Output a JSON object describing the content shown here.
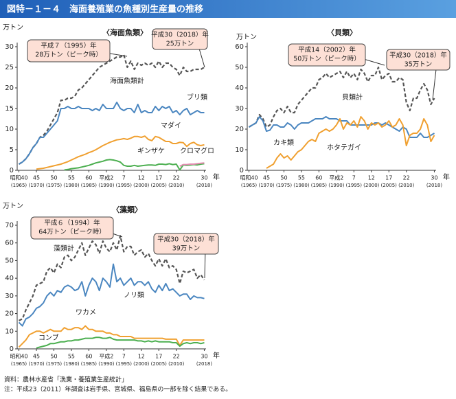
{
  "title": "図特－１－４　海面養殖業の魚種別生産量の推移",
  "notes": [
    "資料：農林水産省「漁業・養殖業生産統計」",
    "注：平成23（2011）年調査は岩手県、宮城県、福島県の一部を除く結果である。"
  ],
  "chart_data": [
    {
      "type": "line",
      "subtitle": "〈海面魚類〉",
      "y_unit": "万トン",
      "x_unit": "年",
      "x": [
        1965,
        1966,
        1967,
        1968,
        1969,
        1970,
        1971,
        1972,
        1973,
        1974,
        1975,
        1976,
        1977,
        1978,
        1979,
        1980,
        1981,
        1982,
        1983,
        1984,
        1985,
        1986,
        1987,
        1988,
        1989,
        1990,
        1991,
        1992,
        1993,
        1994,
        1995,
        1996,
        1997,
        1998,
        1999,
        2000,
        2001,
        2002,
        2003,
        2004,
        2005,
        2006,
        2007,
        2008,
        2009,
        2010,
        2011,
        2012,
        2013,
        2014,
        2015,
        2016,
        2017,
        2018
      ],
      "xlim": [
        1964.5,
        2018.5
      ],
      "xticks": [
        {
          "value": 1965,
          "label": "昭和40",
          "year": "(1965)"
        },
        {
          "value": 1970,
          "label": "45",
          "year": "(1970)"
        },
        {
          "value": 1975,
          "label": "50",
          "year": "(1975)"
        },
        {
          "value": 1980,
          "label": "55",
          "year": "(1980)"
        },
        {
          "value": 1985,
          "label": "60",
          "year": "(1985)"
        },
        {
          "value": 1990,
          "label": "平成2",
          "year": "(1990)"
        },
        {
          "value": 1995,
          "label": "7",
          "year": "(1995)"
        },
        {
          "value": 2000,
          "label": "12",
          "year": "(2000)"
        },
        {
          "value": 2005,
          "label": "17",
          "year": "(2005)"
        },
        {
          "value": 2010,
          "label": "22",
          "year": "(2010)"
        },
        {
          "value": 2018,
          "label": "30",
          "year": "(2018)"
        }
      ],
      "ylim": [
        0,
        30
      ],
      "yticks": [
        0,
        5,
        10,
        15,
        20,
        25,
        30
      ],
      "series": [
        {
          "name": "海面魚類計",
          "color": "#555555",
          "dashed": true,
          "values": [
            1.5,
            2,
            2.8,
            4,
            5.5,
            6.5,
            8,
            8.5,
            9.5,
            11,
            12.5,
            14,
            17,
            17,
            17.5,
            17.5,
            18,
            19.5,
            20,
            21,
            22,
            23,
            24,
            25,
            25.5,
            26,
            26.5,
            27,
            27.5,
            27.5,
            28,
            25,
            26.5,
            24.5,
            26,
            25.5,
            26,
            25.5,
            26,
            25,
            26.5,
            25,
            26,
            26,
            25,
            24.5,
            23,
            25,
            24,
            24,
            24.5,
            24.5,
            24.5,
            25
          ]
        },
        {
          "name": "ブリ類",
          "color": "#4a86c0",
          "values": [
            1.5,
            2,
            2.8,
            4,
            5.5,
            6.5,
            8,
            8,
            9,
            10,
            11,
            12,
            15,
            15,
            15.5,
            15,
            15,
            15.5,
            15,
            15,
            15,
            14.5,
            15,
            14.5,
            16,
            15,
            15,
            15,
            16.5,
            15,
            14.5,
            15,
            15,
            14,
            16,
            14,
            14.5,
            14,
            14,
            15.5,
            14.5,
            15.5,
            15,
            15.5,
            14,
            14.5,
            13.5,
            14.5,
            15,
            13.5,
            14,
            14.5,
            14,
            14
          ]
        },
        {
          "name": "マダイ",
          "color": "#f0a030",
          "values": [
            null,
            null,
            null,
            null,
            null,
            0.3,
            0.4,
            0.5,
            0.7,
            0.9,
            1.1,
            1.3,
            1.5,
            1.8,
            2.1,
            2.5,
            2.9,
            3.3,
            3.6,
            3.9,
            4.3,
            4.6,
            5,
            5.5,
            6,
            6.4,
            6.8,
            7.1,
            7.4,
            7.5,
            7.7,
            7.5,
            7.8,
            8.2,
            8.2,
            8,
            8.3,
            7.5,
            7.2,
            8.2,
            8,
            7.5,
            7,
            7,
            6.5,
            6.5,
            6.8,
            6.7,
            5.8,
            6.5,
            6.8,
            6.2,
            6,
            6.2
          ]
        },
        {
          "name": "ギンザケ",
          "color": "#4caf50",
          "values": [
            null,
            null,
            null,
            null,
            null,
            null,
            null,
            null,
            null,
            null,
            null,
            null,
            null,
            0.1,
            0.2,
            0.4,
            0.5,
            0.6,
            0.8,
            1,
            1.2,
            1.5,
            1.8,
            2,
            2.2,
            2.5,
            2.6,
            2.5,
            2.3,
            2,
            1.2,
            1,
            1,
            1.2,
            1,
            1.1,
            1.2,
            1.3,
            1.3,
            1.2,
            1.5,
            1.5,
            1.4,
            1.6,
            1.4,
            1.5,
            0.1,
            1.3,
            1.2,
            1.3,
            1.4,
            1.3,
            1.5,
            1.6
          ]
        },
        {
          "name": "クロマグロ",
          "color": "#e28cb0",
          "values": [
            null,
            null,
            null,
            null,
            null,
            null,
            null,
            null,
            null,
            null,
            null,
            null,
            null,
            null,
            null,
            null,
            null,
            null,
            null,
            null,
            null,
            null,
            null,
            null,
            null,
            null,
            null,
            null,
            null,
            null,
            null,
            null,
            null,
            null,
            null,
            null,
            null,
            null,
            null,
            null,
            null,
            null,
            null,
            null,
            null,
            null,
            1.0,
            1.4,
            1.4,
            1.5,
            1.5,
            1.6,
            1.7,
            1.8
          ]
        }
      ],
      "annotations": [
        {
          "lines": [
            "平成７（1995）年",
            "28万トン（ピーク時）"
          ]
        },
        {
          "lines": [
            "平成30（2018）年",
            "25万トン"
          ]
        }
      ]
    },
    {
      "type": "line",
      "subtitle": "〈貝類〉",
      "y_unit": "万トン",
      "x_unit": "年",
      "x": [
        1965,
        1966,
        1967,
        1968,
        1969,
        1970,
        1971,
        1972,
        1973,
        1974,
        1975,
        1976,
        1977,
        1978,
        1979,
        1980,
        1981,
        1982,
        1983,
        1984,
        1985,
        1986,
        1987,
        1988,
        1989,
        1990,
        1991,
        1992,
        1993,
        1994,
        1995,
        1996,
        1997,
        1998,
        1999,
        2000,
        2001,
        2002,
        2003,
        2004,
        2005,
        2006,
        2007,
        2008,
        2009,
        2010,
        2011,
        2012,
        2013,
        2014,
        2015,
        2016,
        2017,
        2018
      ],
      "xlim": [
        1964.5,
        2018.5
      ],
      "xticks": [
        {
          "value": 1965,
          "label": "昭和40",
          "year": "(1965)"
        },
        {
          "value": 1970,
          "label": "45",
          "year": "(1970)"
        },
        {
          "value": 1975,
          "label": "50",
          "year": "(1975)"
        },
        {
          "value": 1980,
          "label": "55",
          "year": "(1980)"
        },
        {
          "value": 1985,
          "label": "60",
          "year": "(1985)"
        },
        {
          "value": 1990,
          "label": "平成2",
          "year": "(1990)"
        },
        {
          "value": 1995,
          "label": "7",
          "year": "(1995)"
        },
        {
          "value": 2000,
          "label": "12",
          "year": "(2000)"
        },
        {
          "value": 2005,
          "label": "17",
          "year": "(2005)"
        },
        {
          "value": 2010,
          "label": "22",
          "year": "(2010)"
        },
        {
          "value": 2018,
          "label": "30",
          "year": "(2018)"
        }
      ],
      "ylim": [
        0,
        60
      ],
      "yticks": [
        0,
        10,
        20,
        30,
        40,
        50,
        60
      ],
      "series": [
        {
          "name": "貝類計",
          "color": "#555555",
          "dashed": true,
          "values": [
            21,
            22,
            23,
            27,
            25,
            21,
            22,
            26,
            29,
            30,
            28,
            31,
            28,
            28,
            32,
            34,
            36,
            38,
            40,
            40,
            44,
            45,
            47,
            45,
            46,
            47,
            48,
            45,
            48,
            45,
            47,
            44,
            49,
            47,
            43,
            46,
            46,
            50,
            44,
            46,
            47,
            43,
            43,
            45,
            44,
            33,
            29,
            35,
            35,
            39,
            42,
            39,
            32,
            35
          ]
        },
        {
          "name": "カキ類",
          "color": "#4a86c0",
          "values": [
            21,
            22,
            23,
            26,
            24,
            19,
            19.5,
            22,
            22,
            21,
            21,
            23,
            22,
            20,
            22,
            23,
            23,
            23,
            24,
            25,
            25,
            25,
            26,
            25,
            25,
            25,
            24,
            24,
            24,
            22,
            22,
            22,
            22,
            22,
            22,
            22,
            23,
            23,
            22,
            23,
            22,
            21,
            20,
            19,
            21,
            20,
            16,
            16,
            16,
            18,
            16,
            16,
            17,
            18
          ]
        },
        {
          "name": "ホタテガイ",
          "color": "#f0a030",
          "values": [
            null,
            null,
            null,
            null,
            null,
            1,
            2,
            3,
            6,
            8,
            6,
            7,
            5,
            7,
            9,
            10,
            12,
            14,
            15,
            14,
            18,
            19,
            20,
            19,
            20,
            22,
            25,
            20,
            23,
            22,
            24,
            21,
            26,
            24,
            20,
            23,
            22,
            23,
            21,
            22,
            24,
            21,
            22,
            25,
            22,
            12,
            17,
            18,
            18,
            20,
            25,
            22,
            14,
            17
          ]
        }
      ],
      "annotations": [
        {
          "lines": [
            "平成14（2002）年",
            "50万トン（ピーク時）"
          ]
        },
        {
          "lines": [
            "平成30（2018）年",
            "35万トン"
          ]
        }
      ]
    },
    {
      "type": "line",
      "subtitle": "〈藻類〉",
      "y_unit": "万トン",
      "x_unit": "年",
      "x": [
        1965,
        1966,
        1967,
        1968,
        1969,
        1970,
        1971,
        1972,
        1973,
        1974,
        1975,
        1976,
        1977,
        1978,
        1979,
        1980,
        1981,
        1982,
        1983,
        1984,
        1985,
        1986,
        1987,
        1988,
        1989,
        1990,
        1991,
        1992,
        1993,
        1994,
        1995,
        1996,
        1997,
        1998,
        1999,
        2000,
        2001,
        2002,
        2003,
        2004,
        2005,
        2006,
        2007,
        2008,
        2009,
        2010,
        2011,
        2012,
        2013,
        2014,
        2015,
        2016,
        2017,
        2018
      ],
      "xlim": [
        1964.5,
        2018.5
      ],
      "xticks": [
        {
          "value": 1965,
          "label": "昭和40",
          "year": "(1965)"
        },
        {
          "value": 1970,
          "label": "45",
          "year": "(1970)"
        },
        {
          "value": 1975,
          "label": "50",
          "year": "(1975)"
        },
        {
          "value": 1980,
          "label": "55",
          "year": "(1980)"
        },
        {
          "value": 1985,
          "label": "60",
          "year": "(1985)"
        },
        {
          "value": 1990,
          "label": "平成2",
          "year": "(1990)"
        },
        {
          "value": 1995,
          "label": "7",
          "year": "(1995)"
        },
        {
          "value": 2000,
          "label": "12",
          "year": "(2000)"
        },
        {
          "value": 2005,
          "label": "17",
          "year": "(2005)"
        },
        {
          "value": 2010,
          "label": "22",
          "year": "(2010)"
        },
        {
          "value": 2018,
          "label": "30",
          "year": "(2018)"
        }
      ],
      "ylim": [
        0,
        70
      ],
      "yticks": [
        0,
        10,
        20,
        30,
        40,
        50,
        60,
        70
      ],
      "series": [
        {
          "name": "藻類計",
          "color": "#555555",
          "dashed": true,
          "values": [
            16,
            17,
            22,
            26,
            30,
            36,
            37,
            38,
            44,
            46,
            43,
            48,
            46,
            52,
            53,
            50,
            52,
            56,
            60,
            53,
            57,
            61,
            59,
            54,
            61,
            57,
            55,
            60,
            56,
            64,
            55,
            58,
            58,
            53,
            55,
            56,
            52,
            54,
            50,
            47,
            51,
            47,
            51,
            46,
            47,
            45,
            37,
            44,
            43,
            44,
            45,
            40,
            42,
            39
          ]
        },
        {
          "name": "ノリ類",
          "color": "#4a86c0",
          "values": [
            15,
            13,
            17,
            18,
            20,
            23,
            24,
            26,
            30,
            32,
            30,
            33,
            32,
            35,
            36,
            35,
            33,
            34,
            38,
            30,
            36,
            40,
            38,
            33,
            40,
            38,
            35,
            48,
            38,
            40,
            36,
            38,
            40,
            36,
            38,
            38,
            36,
            38,
            34,
            32,
            36,
            33,
            37,
            33,
            34,
            32,
            30,
            31,
            31,
            28,
            30,
            29,
            29,
            28.5
          ]
        },
        {
          "name": "ワカメ",
          "color": "#f0a030",
          "values": [
            1,
            3,
            5,
            8,
            9,
            10,
            10,
            9,
            10,
            11,
            10,
            10,
            10,
            12,
            11,
            11,
            12,
            12,
            11,
            13,
            11,
            11,
            10,
            10,
            10,
            9,
            9,
            8,
            8,
            7,
            7,
            7,
            7,
            6,
            6,
            6,
            6,
            6,
            6,
            6,
            6,
            6,
            5.5,
            5.5,
            5.5,
            5.5,
            2,
            5,
            5,
            5,
            5,
            5,
            5,
            5
          ]
        },
        {
          "name": "コンブ",
          "color": "#4caf50",
          "values": [
            null,
            null,
            null,
            null,
            null,
            0.5,
            1,
            1.5,
            2,
            3,
            3,
            3.5,
            4,
            4,
            4.5,
            4.5,
            5,
            5,
            5.5,
            6,
            6,
            6,
            6.5,
            6.5,
            6,
            6,
            6.5,
            5.5,
            5,
            5,
            5,
            5,
            5,
            5,
            4.5,
            4.5,
            4,
            4.5,
            4,
            4.5,
            4,
            4,
            4,
            4,
            3.5,
            3.5,
            1.5,
            3,
            3.5,
            3,
            3.5,
            3.5,
            3,
            3.5
          ]
        }
      ],
      "annotations": [
        {
          "lines": [
            "平成６（1994）年",
            "64万トン（ピーク時）"
          ]
        },
        {
          "lines": [
            "平成30（2018）年",
            "39万トン"
          ]
        }
      ]
    }
  ]
}
